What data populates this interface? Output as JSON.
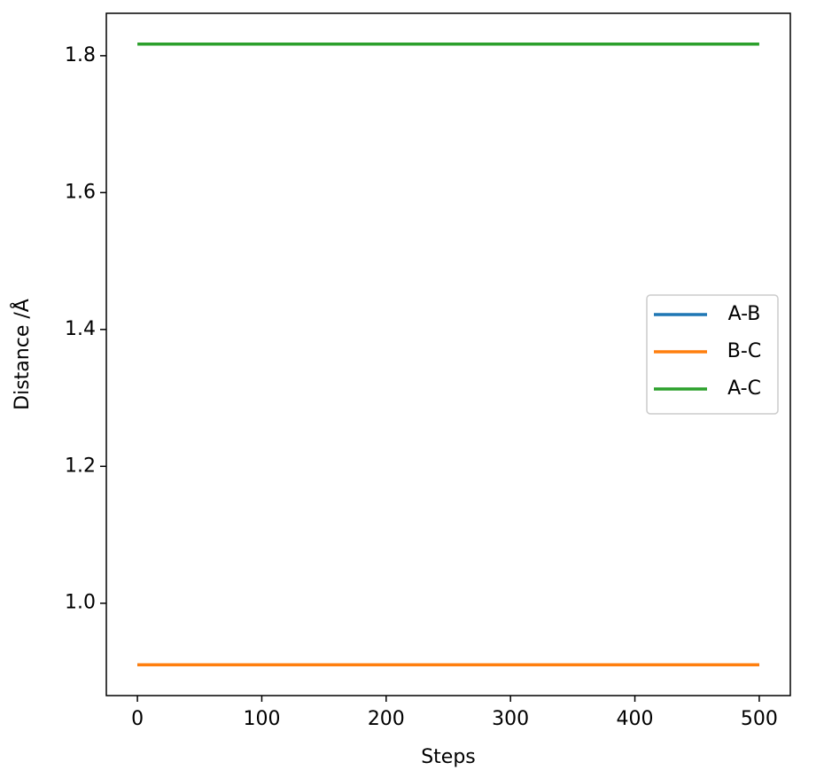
{
  "chart_data": {
    "type": "line",
    "xlabel": "Steps",
    "ylabel": "Distance /Å",
    "x": [
      0,
      100,
      200,
      300,
      400,
      500
    ],
    "series": [
      {
        "name": "A-B",
        "color": "#1f77b4",
        "values": [
          0.91,
          0.91,
          0.91,
          0.91,
          0.91,
          0.91
        ]
      },
      {
        "name": "B-C",
        "color": "#ff7f0e",
        "values": [
          0.91,
          0.91,
          0.91,
          0.91,
          0.91,
          0.91
        ]
      },
      {
        "name": "A-C",
        "color": "#2ca02c",
        "values": [
          1.817,
          1.817,
          1.817,
          1.817,
          1.817,
          1.817
        ]
      }
    ],
    "xlim": [
      -25,
      525
    ],
    "xticks": [
      0,
      100,
      200,
      300,
      400,
      500
    ],
    "ylim": [
      0.865,
      1.862
    ],
    "yticks": [
      {
        "value": 1.0,
        "label": "1.0"
      },
      1.2,
      1.4,
      1.6,
      1.8
    ],
    "legend": "center right",
    "grid": false
  }
}
